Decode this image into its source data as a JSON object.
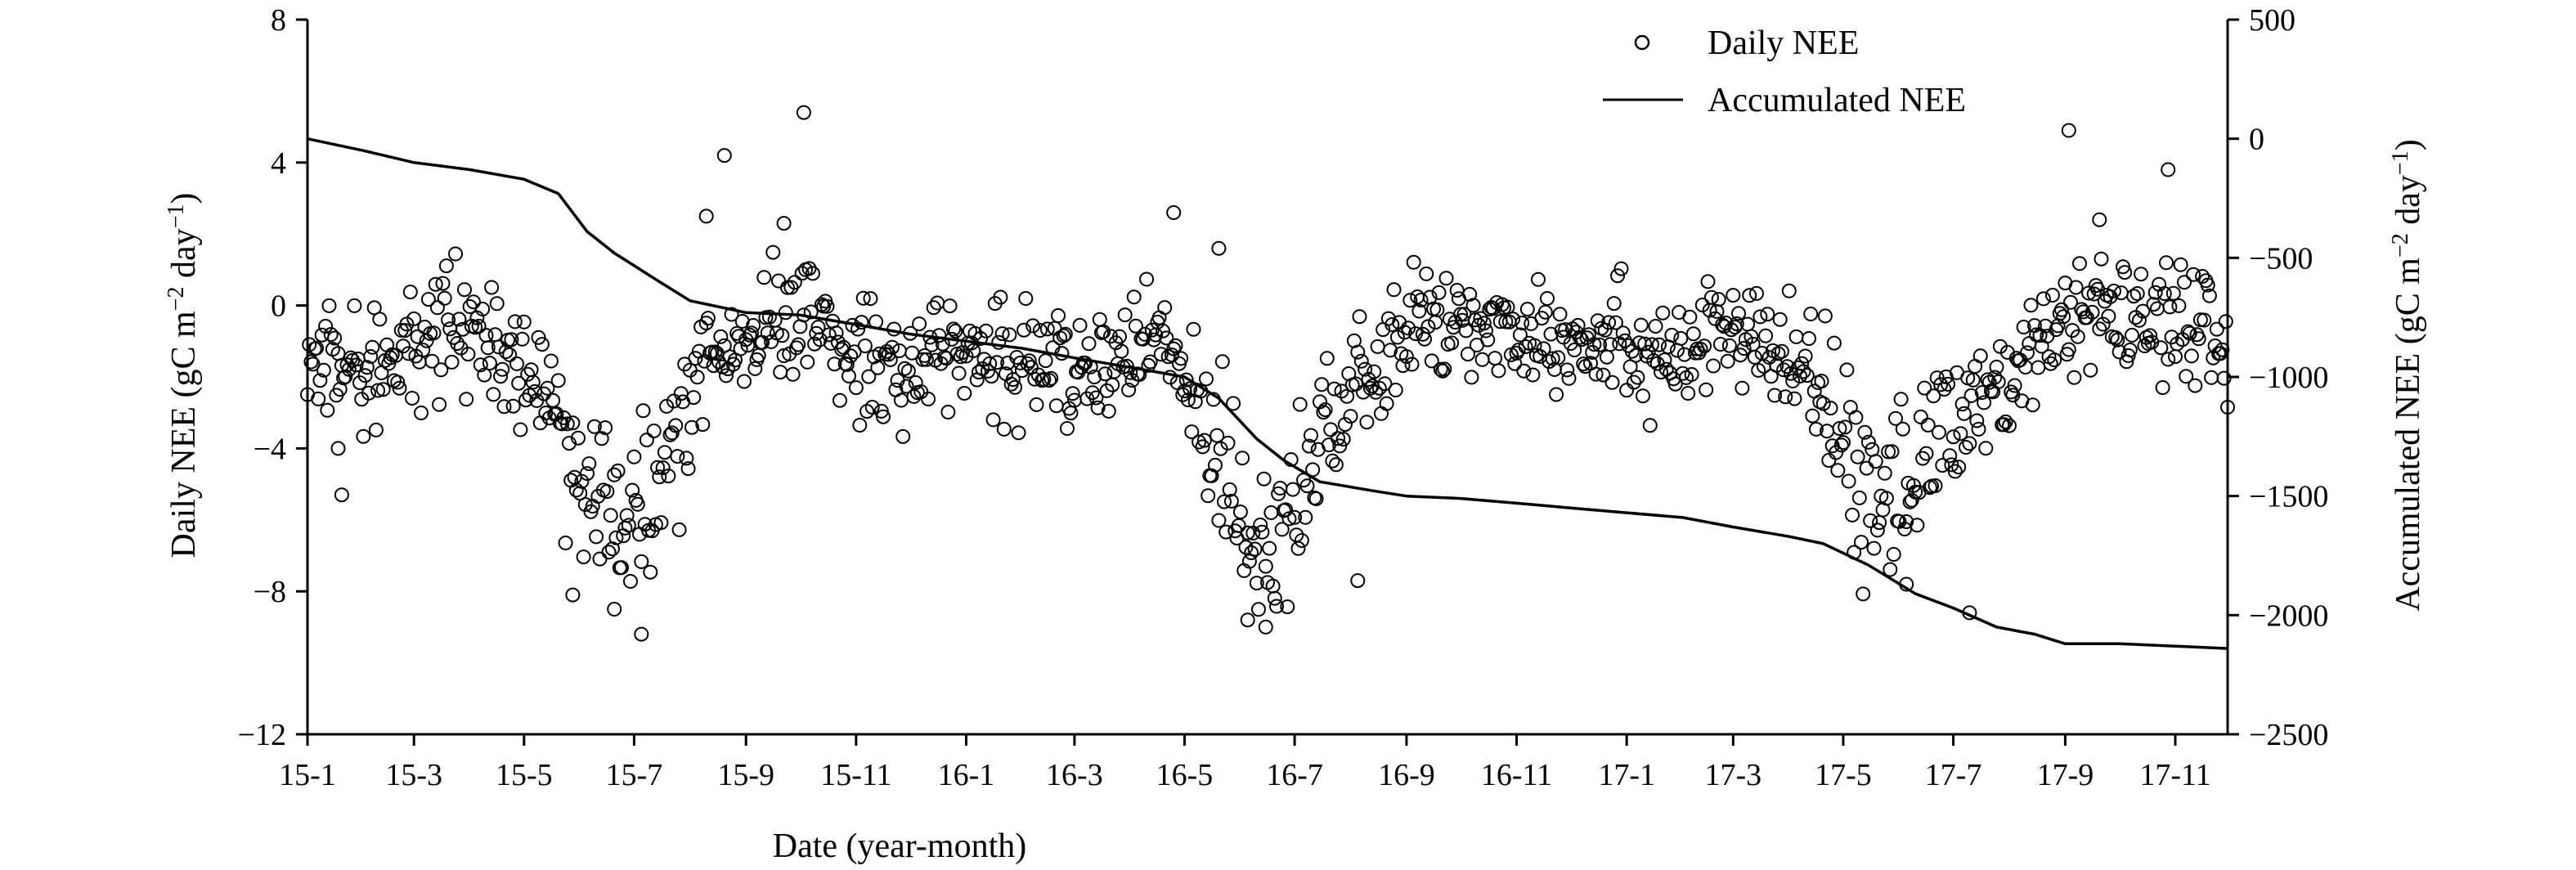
{
  "chart_data": {
    "type": "scatter+line",
    "xlabel": "Date (year-month)",
    "ylabel_left": {
      "main": "Daily NEE (gC m",
      "sup1": "−2",
      "mid": " day",
      "sup2": "−1",
      "end": ")"
    },
    "ylabel_right": {
      "main": "Accumulated NEE (gC m",
      "sup1": "−2",
      "mid": " day",
      "sup2": "−1",
      "end": ")"
    },
    "x_range": [
      "2015-01-01",
      "2017-11-30"
    ],
    "x_ticks": [
      {
        "label": "15-1",
        "date": "2015-01-01"
      },
      {
        "label": "15-3",
        "date": "2015-03-01"
      },
      {
        "label": "15-5",
        "date": "2015-05-01"
      },
      {
        "label": "15-7",
        "date": "2015-07-01"
      },
      {
        "label": "15-9",
        "date": "2015-09-01"
      },
      {
        "label": "15-11",
        "date": "2015-11-01"
      },
      {
        "label": "16-1",
        "date": "2016-01-01"
      },
      {
        "label": "16-3",
        "date": "2016-03-01"
      },
      {
        "label": "16-5",
        "date": "2016-05-01"
      },
      {
        "label": "16-7",
        "date": "2016-07-01"
      },
      {
        "label": "16-9",
        "date": "2016-09-01"
      },
      {
        "label": "16-11",
        "date": "2016-11-01"
      },
      {
        "label": "17-1",
        "date": "2017-01-01"
      },
      {
        "label": "17-3",
        "date": "2017-03-01"
      },
      {
        "label": "17-5",
        "date": "2017-05-01"
      },
      {
        "label": "17-7",
        "date": "2017-07-01"
      },
      {
        "label": "17-9",
        "date": "2017-09-01"
      },
      {
        "label": "17-11",
        "date": "2017-11-01"
      }
    ],
    "y_left": {
      "min": -12,
      "max": 8,
      "ticks": [
        8,
        4,
        0,
        -4,
        -8,
        -12
      ],
      "tick_labels": [
        "8",
        "4",
        "0",
        "−4",
        "−8",
        "−12"
      ]
    },
    "y_right": {
      "min": -2500,
      "max": 500,
      "ticks": [
        500,
        0,
        -500,
        -1000,
        -1500,
        -2000,
        -2500
      ],
      "tick_labels": [
        "500",
        "0",
        "−500",
        "−1000",
        "−1500",
        "−2000",
        "−2500"
      ]
    },
    "legend": {
      "position": "top-right",
      "entries": [
        {
          "label": "Daily NEE",
          "marker": "open-circle"
        },
        {
          "label": "Accumulated NEE",
          "marker": "line"
        }
      ]
    },
    "grid": false,
    "series": [
      {
        "name": "Daily NEE",
        "kind": "scatter",
        "axis": "left",
        "marker": "open-circle",
        "color": "#000000",
        "anchor_profile": [
          [
            "2015-01-01",
            -1.5
          ],
          [
            "2015-02-01",
            -1.9
          ],
          [
            "2015-03-01",
            -1.3
          ],
          [
            "2015-03-25",
            -0.6
          ],
          [
            "2015-04-15",
            -1.2
          ],
          [
            "2015-05-01",
            -1.6
          ],
          [
            "2015-05-20",
            -3.0
          ],
          [
            "2015-06-05",
            -5.5
          ],
          [
            "2015-06-25",
            -6.3
          ],
          [
            "2015-07-10",
            -5.3
          ],
          [
            "2015-07-28",
            -3.2
          ],
          [
            "2015-08-15",
            -1.6
          ],
          [
            "2015-09-01",
            -1.3
          ],
          [
            "2015-09-15",
            -0.8
          ],
          [
            "2015-10-01",
            -0.4
          ],
          [
            "2015-10-15",
            -0.6
          ],
          [
            "2015-11-01",
            -1.4
          ],
          [
            "2015-12-01",
            -1.6
          ],
          [
            "2016-01-01",
            -1.3
          ],
          [
            "2016-02-01",
            -1.6
          ],
          [
            "2016-03-01",
            -1.9
          ],
          [
            "2016-04-01",
            -1.4
          ],
          [
            "2016-04-20",
            -1.0
          ],
          [
            "2016-05-05",
            -2.6
          ],
          [
            "2016-05-25",
            -4.5
          ],
          [
            "2016-06-10",
            -6.8
          ],
          [
            "2016-06-25",
            -5.8
          ],
          [
            "2016-07-10",
            -4.2
          ],
          [
            "2016-07-25",
            -3.0
          ],
          [
            "2016-08-15",
            -2.0
          ],
          [
            "2016-09-01",
            -0.8
          ],
          [
            "2016-09-15",
            -0.5
          ],
          [
            "2016-11-01",
            -0.6
          ],
          [
            "2017-01-01",
            -1.0
          ],
          [
            "2017-02-01",
            -1.4
          ],
          [
            "2017-03-01",
            -0.8
          ],
          [
            "2017-04-01",
            -1.6
          ],
          [
            "2017-04-20",
            -2.6
          ],
          [
            "2017-05-10",
            -4.6
          ],
          [
            "2017-06-01",
            -5.5
          ],
          [
            "2017-06-20",
            -3.9
          ],
          [
            "2017-07-10",
            -2.8
          ],
          [
            "2017-08-01",
            -2.0
          ],
          [
            "2017-08-20",
            -1.2
          ],
          [
            "2017-09-10",
            -0.3
          ],
          [
            "2017-10-01",
            -0.4
          ],
          [
            "2017-11-01",
            -0.5
          ],
          [
            "2017-11-25",
            -0.8
          ]
        ],
        "notable_points": [
          [
            "2015-10-03",
            5.4
          ],
          [
            "2015-08-20",
            4.2
          ],
          [
            "2017-09-03",
            4.9
          ],
          [
            "2017-10-28",
            3.8
          ],
          [
            "2016-04-25",
            2.6
          ],
          [
            "2015-08-10",
            2.5
          ],
          [
            "2015-09-22",
            2.3
          ],
          [
            "2016-05-20",
            1.6
          ],
          [
            "2017-09-20",
            2.4
          ],
          [
            "2015-07-05",
            -9.2
          ],
          [
            "2015-06-20",
            -8.5
          ],
          [
            "2016-06-15",
            -9.0
          ],
          [
            "2016-06-05",
            -8.8
          ],
          [
            "2017-07-10",
            -8.6
          ],
          [
            "2015-05-28",
            -8.1
          ],
          [
            "2016-08-05",
            -7.7
          ],
          [
            "2017-06-05",
            -7.8
          ],
          [
            "2015-01-20",
            -5.3
          ],
          [
            "2015-01-18",
            -4.0
          ]
        ],
        "approx_daily_count": 1060,
        "noise_sd": 0.9
      },
      {
        "name": "Accumulated NEE",
        "kind": "line",
        "axis": "right",
        "color": "#000000",
        "points": [
          [
            "2015-01-01",
            0
          ],
          [
            "2015-02-01",
            -50
          ],
          [
            "2015-03-01",
            -100
          ],
          [
            "2015-04-01",
            -130
          ],
          [
            "2015-05-01",
            -170
          ],
          [
            "2015-05-20",
            -230
          ],
          [
            "2015-06-05",
            -390
          ],
          [
            "2015-06-20",
            -480
          ],
          [
            "2015-07-15",
            -600
          ],
          [
            "2015-08-01",
            -680
          ],
          [
            "2015-09-01",
            -730
          ],
          [
            "2015-10-01",
            -740
          ],
          [
            "2015-11-01",
            -780
          ],
          [
            "2015-12-01",
            -820
          ],
          [
            "2016-01-01",
            -850
          ],
          [
            "2016-02-01",
            -880
          ],
          [
            "2016-03-01",
            -920
          ],
          [
            "2016-04-01",
            -960
          ],
          [
            "2016-05-01",
            -1000
          ],
          [
            "2016-05-20",
            -1090
          ],
          [
            "2016-06-10",
            -1260
          ],
          [
            "2016-06-25",
            -1350
          ],
          [
            "2016-07-15",
            -1440
          ],
          [
            "2016-08-15",
            -1480
          ],
          [
            "2016-09-01",
            -1500
          ],
          [
            "2016-10-01",
            -1510
          ],
          [
            "2016-11-01",
            -1530
          ],
          [
            "2016-12-01",
            -1550
          ],
          [
            "2017-01-01",
            -1570
          ],
          [
            "2017-02-01",
            -1590
          ],
          [
            "2017-03-01",
            -1630
          ],
          [
            "2017-04-01",
            -1670
          ],
          [
            "2017-04-20",
            -1700
          ],
          [
            "2017-05-15",
            -1790
          ],
          [
            "2017-06-10",
            -1910
          ],
          [
            "2017-07-01",
            -1970
          ],
          [
            "2017-07-25",
            -2050
          ],
          [
            "2017-08-15",
            -2080
          ],
          [
            "2017-09-01",
            -2120
          ],
          [
            "2017-10-01",
            -2120
          ],
          [
            "2017-11-01",
            -2130
          ],
          [
            "2017-11-30",
            -2140
          ]
        ]
      }
    ]
  }
}
